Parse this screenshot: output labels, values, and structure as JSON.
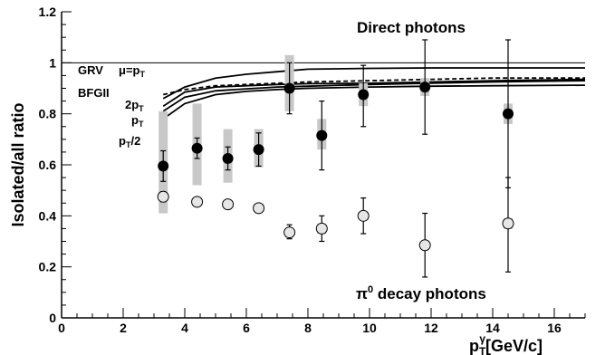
{
  "chart_data": {
    "type": "scatter",
    "title": "",
    "xlabel": "[GeV/c]",
    "xlabel_symbol": "p",
    "xlabel_sub": "T",
    "xlabel_sup": "γ",
    "ylabel": "Isolated/all ratio",
    "xlim": [
      0,
      17
    ],
    "ylim": [
      0,
      1.2
    ],
    "x_ticks": [
      0,
      2,
      4,
      6,
      8,
      10,
      12,
      14,
      16
    ],
    "y_ticks": [
      0,
      0.2,
      0.4,
      0.6,
      0.8,
      1.0,
      1.2
    ],
    "x_tick_labels": [
      "0",
      "2",
      "4",
      "6",
      "8",
      "10",
      "12",
      "14",
      "16"
    ],
    "y_tick_labels": [
      "0",
      "0.2",
      "0.4",
      "0.6",
      "0.8",
      "1",
      "1.2"
    ],
    "grid": false,
    "reference_line": 1.0,
    "series": [
      {
        "name": "Direct photons",
        "marker": "filled-circle",
        "color": "#000000",
        "points": [
          {
            "x": 3.3,
            "y": 0.595,
            "stat_lo": 0.535,
            "stat_hi": 0.655,
            "sys_lo": 0.41,
            "sys_hi": 0.81
          },
          {
            "x": 4.4,
            "y": 0.665,
            "stat_lo": 0.625,
            "stat_hi": 0.705,
            "sys_lo": 0.52,
            "sys_hi": 0.84
          },
          {
            "x": 5.4,
            "y": 0.625,
            "stat_lo": 0.58,
            "stat_hi": 0.67,
            "sys_lo": 0.53,
            "sys_hi": 0.74
          },
          {
            "x": 6.4,
            "y": 0.66,
            "stat_lo": 0.595,
            "stat_hi": 0.725,
            "sys_lo": 0.59,
            "sys_hi": 0.74
          },
          {
            "x": 7.4,
            "y": 0.9,
            "stat_lo": 0.8,
            "stat_hi": 1.0,
            "sys_lo": 0.81,
            "sys_hi": 1.03
          },
          {
            "x": 8.45,
            "y": 0.715,
            "stat_lo": 0.58,
            "stat_hi": 0.85,
            "sys_lo": 0.66,
            "sys_hi": 0.78
          },
          {
            "x": 9.8,
            "y": 0.875,
            "stat_lo": 0.75,
            "stat_hi": 0.99,
            "sys_lo": 0.83,
            "sys_hi": 0.92
          },
          {
            "x": 11.8,
            "y": 0.905,
            "stat_lo": 0.72,
            "stat_hi": 1.09,
            "sys_lo": 0.87,
            "sys_hi": 0.94
          },
          {
            "x": 14.5,
            "y": 0.8,
            "stat_lo": 0.51,
            "stat_hi": 1.09,
            "sys_lo": 0.76,
            "sys_hi": 0.84
          }
        ]
      },
      {
        "name": "π0 decay photons",
        "marker": "open-circle",
        "color": "#000000",
        "points": [
          {
            "x": 3.3,
            "y": 0.475,
            "stat_lo": 0.455,
            "stat_hi": 0.495,
            "sys_lo": 0.455,
            "sys_hi": 0.495
          },
          {
            "x": 4.4,
            "y": 0.455,
            "stat_lo": 0.44,
            "stat_hi": 0.47,
            "sys_lo": 0.44,
            "sys_hi": 0.47
          },
          {
            "x": 5.4,
            "y": 0.445,
            "stat_lo": 0.43,
            "stat_hi": 0.46,
            "sys_lo": 0.43,
            "sys_hi": 0.46
          },
          {
            "x": 6.4,
            "y": 0.43,
            "stat_lo": 0.415,
            "stat_hi": 0.445,
            "sys_lo": 0.415,
            "sys_hi": 0.445
          },
          {
            "x": 7.4,
            "y": 0.335,
            "stat_lo": 0.31,
            "stat_hi": 0.365,
            "sys_lo": 0.32,
            "sys_hi": 0.35
          },
          {
            "x": 8.45,
            "y": 0.35,
            "stat_lo": 0.3,
            "stat_hi": 0.4,
            "sys_lo": 0.33,
            "sys_hi": 0.37
          },
          {
            "x": 9.8,
            "y": 0.4,
            "stat_lo": 0.33,
            "stat_hi": 0.47,
            "sys_lo": 0.385,
            "sys_hi": 0.415
          },
          {
            "x": 11.8,
            "y": 0.285,
            "stat_lo": 0.16,
            "stat_hi": 0.41,
            "sys_lo": 0.27,
            "sys_hi": 0.3
          },
          {
            "x": 14.5,
            "y": 0.37,
            "stat_lo": 0.18,
            "stat_hi": 0.55,
            "sys_lo": 0.35,
            "sys_hi": 0.39
          }
        ]
      }
    ],
    "curves": [
      {
        "label": "GRV μ=pT",
        "dash": false,
        "points": [
          [
            3.3,
            0.86
          ],
          [
            4,
            0.905
          ],
          [
            5,
            0.94
          ],
          [
            6,
            0.955
          ],
          [
            7,
            0.965
          ],
          [
            8,
            0.975
          ],
          [
            10,
            0.978
          ],
          [
            12,
            0.98
          ],
          [
            14,
            0.98
          ],
          [
            17,
            0.98
          ]
        ]
      },
      {
        "label": "BFGII",
        "dash": true,
        "points": [
          [
            3.3,
            0.875
          ],
          [
            4,
            0.895
          ],
          [
            5,
            0.91
          ],
          [
            6,
            0.915
          ],
          [
            7,
            0.92
          ],
          [
            8,
            0.925
          ],
          [
            10,
            0.93
          ],
          [
            12,
            0.935
          ],
          [
            14,
            0.94
          ],
          [
            17,
            0.94
          ]
        ]
      },
      {
        "label": "2pT",
        "dash": false,
        "points": [
          [
            3.3,
            0.83
          ],
          [
            4,
            0.885
          ],
          [
            5,
            0.905
          ],
          [
            6,
            0.91
          ],
          [
            7,
            0.915
          ],
          [
            8,
            0.918
          ],
          [
            10,
            0.92
          ],
          [
            12,
            0.925
          ],
          [
            14,
            0.93
          ],
          [
            17,
            0.935
          ]
        ]
      },
      {
        "label": "pT",
        "dash": false,
        "points": [
          [
            3.3,
            0.81
          ],
          [
            4,
            0.865
          ],
          [
            5,
            0.89
          ],
          [
            6,
            0.898
          ],
          [
            7,
            0.905
          ],
          [
            8,
            0.908
          ],
          [
            10,
            0.915
          ],
          [
            12,
            0.92
          ],
          [
            14,
            0.925
          ],
          [
            17,
            0.93
          ]
        ]
      },
      {
        "label": "pT/2",
        "dash": false,
        "points": [
          [
            3.3,
            0.78
          ],
          [
            4,
            0.84
          ],
          [
            5,
            0.875
          ],
          [
            6,
            0.888
          ],
          [
            7,
            0.895
          ],
          [
            8,
            0.9
          ],
          [
            10,
            0.905
          ],
          [
            12,
            0.908
          ],
          [
            14,
            0.91
          ],
          [
            17,
            0.912
          ]
        ]
      }
    ],
    "annotations": {
      "direct_label": "Direct photons",
      "decay_label_prefix": "π",
      "decay_label_sup": "0",
      "decay_label_suffix": " decay photons",
      "grv": "GRV",
      "mu_eq": "μ=p",
      "mu_sub": "T",
      "bfgii": "BFGII",
      "two_pt": "2p",
      "two_pt_sub": "T",
      "pt": "p",
      "pt_sub": "T",
      "pt_half": "p",
      "pt_half_sub": "T",
      "pt_half_suffix": "/2"
    }
  }
}
